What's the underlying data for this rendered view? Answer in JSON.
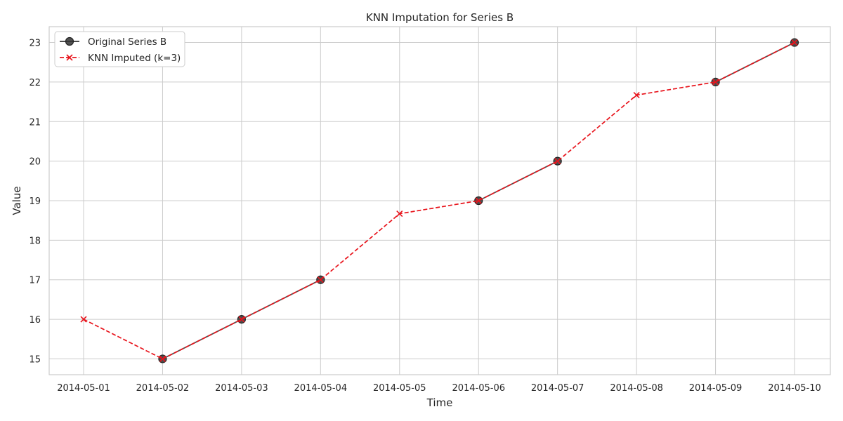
{
  "chart_data": {
    "type": "line",
    "title": "KNN Imputation for Series B",
    "xlabel": "Time",
    "ylabel": "Value",
    "x": [
      "2014-05-01",
      "2014-05-02",
      "2014-05-03",
      "2014-05-04",
      "2014-05-05",
      "2014-05-06",
      "2014-05-07",
      "2014-05-08",
      "2014-05-09",
      "2014-05-10"
    ],
    "yticks": [
      15,
      16,
      17,
      18,
      19,
      20,
      21,
      22,
      23
    ],
    "ylim": [
      14.6,
      23.4
    ],
    "grid": true,
    "legend_position": "top-left",
    "series": [
      {
        "name": "Original Series B",
        "values": [
          null,
          15,
          16,
          17,
          null,
          19,
          20,
          null,
          22,
          23
        ],
        "color": "#333333",
        "marker": "circle",
        "line_style": "solid"
      },
      {
        "name": "KNN Imputed (k=3)",
        "values": [
          16,
          15,
          16,
          17,
          18.67,
          19,
          20,
          21.67,
          22,
          23
        ],
        "color": "#e8141c",
        "marker": "x",
        "line_style": "dashed"
      }
    ]
  }
}
